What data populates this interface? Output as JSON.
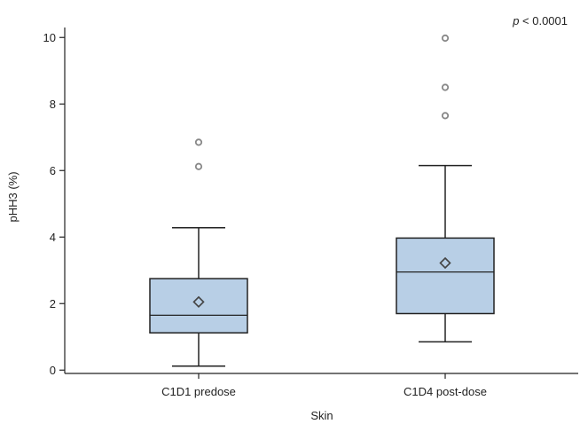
{
  "chart_data": {
    "type": "box",
    "annotation": {
      "p_symbol": "p",
      "text": " < 0.0001"
    },
    "xlabel": "Skin",
    "ylabel": "pHH3 (%)",
    "ylim": [
      -0.1,
      10.3
    ],
    "yticks": [
      0,
      2,
      4,
      6,
      8,
      10
    ],
    "grid": false,
    "colors": {
      "box_fill": "#b8cfe6",
      "stroke": "#222222",
      "outlier": "#888888"
    },
    "categories": [
      "C1D1 predose",
      "C1D4 post-dose"
    ],
    "boxes": [
      {
        "category": "C1D1 predose",
        "whisker_low": 0.12,
        "q1": 1.12,
        "median": 1.65,
        "q3": 2.75,
        "whisker_high": 4.28,
        "mean": 2.05,
        "outliers": [
          6.12,
          6.85
        ]
      },
      {
        "category": "C1D4 post-dose",
        "whisker_low": 0.85,
        "q1": 1.7,
        "median": 2.95,
        "q3": 3.97,
        "whisker_high": 6.15,
        "mean": 3.22,
        "outliers": [
          7.65,
          8.5,
          9.98
        ]
      }
    ]
  }
}
